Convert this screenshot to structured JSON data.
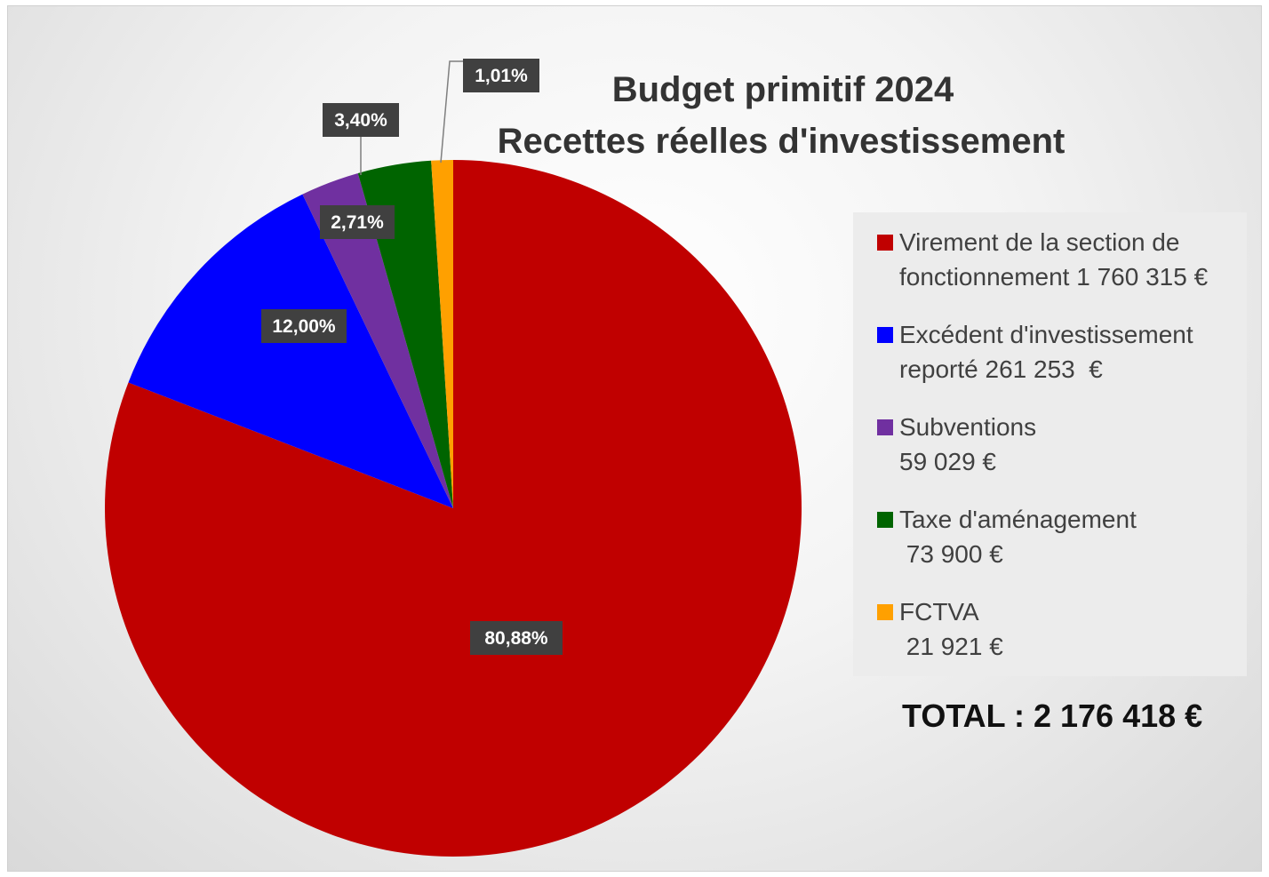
{
  "chart_data": {
    "type": "pie",
    "title": "Budget primitif 2024",
    "subtitle": "Recettes réelles d'investissement",
    "series": [
      {
        "name": "",
        "values": [
          80.88,
          12.0,
          2.71,
          3.4,
          1.01
        ]
      }
    ],
    "categories": [
      "Virement de la section de fonctionnement 1 760 315 €",
      "Excédent d'investissement reporté 261 253  €",
      "Subventions 59 029 €",
      "Taxe d'aménagement 73 900 €",
      "FCTVA 21 921 €"
    ],
    "data_labels": [
      "80,88%",
      "12,00%",
      "2,71%",
      "3,40%",
      "1,01%"
    ],
    "colors": [
      "#c00000",
      "#0000ff",
      "#7030a0",
      "#006400",
      "#ffa000"
    ],
    "legend_position": "right",
    "total": "TOTAL : 2 176 418 €"
  },
  "title": {
    "line1": "Budget primitif 2024",
    "line2": "Recettes réelles d'investissement"
  },
  "legend": {
    "items": [
      {
        "text": "Virement de la section de\nfonctionnement 1 760 315 €",
        "color": "#c00000"
      },
      {
        "text": "Excédent d'investissement\nreporté 261 253  €",
        "color": "#0000ff"
      },
      {
        "text": "Subventions\n59 029 €",
        "color": "#7030a0"
      },
      {
        "text": "Taxe d'aménagement\n 73 900 €",
        "color": "#006400"
      },
      {
        "text": "FCTVA\n 21 921 €",
        "color": "#ffa000"
      }
    ]
  },
  "total_label": "TOTAL : 2 176 418 €"
}
